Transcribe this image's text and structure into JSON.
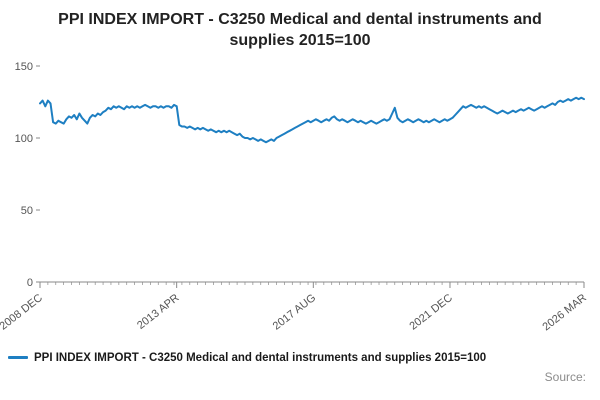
{
  "chart_data": {
    "type": "line",
    "title": "PPI INDEX IMPORT - C3250 Medical and dental instruments and supplies 2015=100",
    "legend_label": "PPI INDEX IMPORT - C3250 Medical and dental instruments and supplies 2015=100",
    "line_color": "#1e7fc2",
    "axis_color": "#8a8a8a",
    "tick_label_color": "#555555",
    "ylim": [
      0,
      150
    ],
    "yticks": [
      0,
      50,
      100,
      150
    ],
    "grid": false,
    "legend_position": "bottom-left",
    "x_start": "2008 DEC",
    "x_end": "2026 MAR",
    "x_frequency": "monthly",
    "x_tick_labels": [
      "2008 DEC",
      "2013 APR",
      "2017 AUG",
      "2021 DEC",
      "2026 MAR"
    ],
    "x_tick_month_index": [
      0,
      52,
      104,
      156,
      207
    ],
    "values": [
      124,
      126,
      122,
      126,
      124,
      111,
      110,
      112,
      111,
      110,
      113,
      115,
      114,
      116,
      113,
      117,
      114,
      112,
      110,
      114,
      116,
      115,
      117,
      116,
      118,
      119,
      121,
      120,
      122,
      121,
      122,
      121,
      120,
      122,
      121,
      122,
      121,
      122,
      121,
      122,
      123,
      122,
      121,
      122,
      122,
      121,
      122,
      121,
      122,
      122,
      121,
      123,
      122,
      109,
      108,
      108,
      107,
      108,
      107,
      106,
      107,
      106,
      107,
      106,
      105,
      106,
      105,
      104,
      105,
      104,
      105,
      104,
      105,
      104,
      103,
      102,
      103,
      101,
      100,
      100,
      99,
      100,
      99,
      98,
      99,
      98,
      97,
      98,
      99,
      98,
      100,
      101,
      102,
      103,
      104,
      105,
      106,
      107,
      108,
      109,
      110,
      111,
      112,
      111,
      112,
      113,
      112,
      111,
      112,
      113,
      112,
      114,
      115,
      113,
      112,
      113,
      112,
      111,
      112,
      113,
      112,
      111,
      112,
      111,
      110,
      111,
      112,
      111,
      110,
      111,
      112,
      113,
      112,
      113,
      117,
      121,
      114,
      112,
      111,
      112,
      113,
      112,
      111,
      112,
      113,
      112,
      111,
      112,
      111,
      112,
      113,
      112,
      111,
      112,
      113,
      112,
      113,
      114,
      116,
      118,
      120,
      122,
      121,
      122,
      123,
      122,
      121,
      122,
      121,
      122,
      121,
      120,
      119,
      118,
      117,
      118,
      119,
      118,
      117,
      118,
      119,
      118,
      119,
      120,
      119,
      120,
      121,
      120,
      119,
      120,
      121,
      122,
      121,
      122,
      123,
      124,
      123,
      125,
      126,
      125,
      126,
      127,
      126,
      127,
      128,
      127,
      128,
      127
    ]
  },
  "footer": {
    "source_label": "Source:"
  }
}
